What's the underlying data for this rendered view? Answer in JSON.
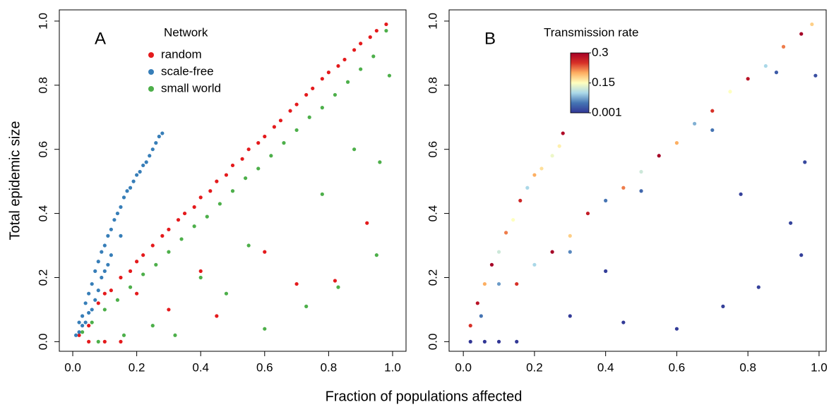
{
  "chart_data": [
    {
      "type": "scatter",
      "panel_label": "A",
      "xlabel": "Fraction of populations affected",
      "ylabel": "Total epidemic size",
      "legend_title": "Network",
      "xlim": [
        -0.042,
        1.042
      ],
      "ylim": [
        -0.03,
        1.035
      ],
      "xticks": [
        {
          "value": 0,
          "label": "0.0"
        },
        0.2,
        0.4,
        0.6,
        0.8,
        {
          "value": 1,
          "label": "1.0"
        }
      ],
      "yticks": [
        {
          "value": 0,
          "label": "0.0"
        },
        0.2,
        0.4,
        0.6,
        0.8,
        {
          "value": 1,
          "label": "1.0"
        }
      ],
      "series": [
        {
          "name": "random",
          "color": "#e41a1c",
          "x": [
            0.02,
            0.05,
            0.08,
            0.1,
            0.12,
            0.15,
            0.18,
            0.2,
            0.22,
            0.25,
            0.28,
            0.3,
            0.33,
            0.35,
            0.38,
            0.4,
            0.43,
            0.45,
            0.48,
            0.5,
            0.53,
            0.55,
            0.58,
            0.6,
            0.63,
            0.65,
            0.68,
            0.7,
            0.73,
            0.75,
            0.78,
            0.8,
            0.83,
            0.85,
            0.88,
            0.9,
            0.93,
            0.95,
            0.98,
            0.05,
            0.1,
            0.15,
            0.3,
            0.45,
            0.7,
            0.82,
            0.92,
            0.2,
            0.6,
            0.4
          ],
          "values": [
            0.02,
            0.05,
            0.12,
            0.15,
            0.16,
            0.2,
            0.22,
            0.25,
            0.27,
            0.3,
            0.33,
            0.35,
            0.38,
            0.4,
            0.42,
            0.45,
            0.47,
            0.5,
            0.52,
            0.55,
            0.57,
            0.6,
            0.62,
            0.64,
            0.67,
            0.69,
            0.72,
            0.74,
            0.77,
            0.79,
            0.82,
            0.84,
            0.86,
            0.88,
            0.91,
            0.93,
            0.95,
            0.97,
            0.99,
            0.0,
            0.0,
            0.0,
            0.1,
            0.08,
            0.18,
            0.19,
            0.37,
            0.15,
            0.28,
            0.22
          ]
        },
        {
          "name": "scale-free",
          "color": "#377eb8",
          "x": [
            0.01,
            0.02,
            0.02,
            0.03,
            0.04,
            0.04,
            0.05,
            0.06,
            0.06,
            0.07,
            0.08,
            0.08,
            0.09,
            0.1,
            0.1,
            0.11,
            0.12,
            0.12,
            0.13,
            0.14,
            0.15,
            0.15,
            0.16,
            0.17,
            0.18,
            0.19,
            0.2,
            0.21,
            0.22,
            0.23,
            0.24,
            0.25,
            0.26,
            0.27,
            0.28,
            0.03,
            0.05,
            0.07,
            0.09,
            0.11
          ],
          "values": [
            0.02,
            0.06,
            0.03,
            0.08,
            0.12,
            0.06,
            0.15,
            0.18,
            0.1,
            0.22,
            0.25,
            0.16,
            0.28,
            0.3,
            0.22,
            0.33,
            0.35,
            0.27,
            0.38,
            0.4,
            0.42,
            0.33,
            0.45,
            0.47,
            0.48,
            0.5,
            0.52,
            0.53,
            0.55,
            0.56,
            0.58,
            0.6,
            0.62,
            0.64,
            0.65,
            0.05,
            0.09,
            0.13,
            0.2,
            0.24
          ]
        },
        {
          "name": "small world",
          "color": "#4daf4a",
          "x": [
            0.03,
            0.06,
            0.1,
            0.14,
            0.18,
            0.22,
            0.26,
            0.3,
            0.34,
            0.38,
            0.42,
            0.46,
            0.5,
            0.54,
            0.58,
            0.62,
            0.66,
            0.7,
            0.74,
            0.78,
            0.82,
            0.86,
            0.9,
            0.94,
            0.98,
            0.08,
            0.16,
            0.32,
            0.48,
            0.6,
            0.73,
            0.78,
            0.83,
            0.88,
            0.95,
            0.96,
            0.99,
            0.25,
            0.4,
            0.55
          ],
          "values": [
            0.03,
            0.06,
            0.1,
            0.13,
            0.17,
            0.21,
            0.24,
            0.28,
            0.32,
            0.36,
            0.39,
            0.43,
            0.47,
            0.51,
            0.54,
            0.58,
            0.62,
            0.66,
            0.7,
            0.73,
            0.77,
            0.81,
            0.85,
            0.89,
            0.97,
            0.0,
            0.02,
            0.02,
            0.15,
            0.04,
            0.11,
            0.46,
            0.17,
            0.6,
            0.27,
            0.56,
            0.83,
            0.05,
            0.2,
            0.3
          ]
        }
      ]
    },
    {
      "type": "colorscatter",
      "panel_label": "B",
      "colorbar_title": "Transmission rate",
      "xlim": [
        -0.04,
        1.02
      ],
      "ylim": [
        -0.03,
        1.035
      ],
      "xticks": [
        {
          "value": 0,
          "label": "0.0"
        },
        0.2,
        0.4,
        0.6,
        0.8,
        {
          "value": 1,
          "label": "1.0"
        }
      ],
      "yticks": [
        {
          "value": 0,
          "label": "0.0"
        },
        0.2,
        0.4,
        0.6,
        0.8,
        {
          "value": 1,
          "label": "1.0"
        }
      ],
      "clim": [
        0.001,
        0.3
      ],
      "cticks": [
        0.001,
        0.15,
        0.3
      ],
      "colormap": [
        "#313695",
        "#4575b4",
        "#abd9e9",
        "#ffffbf",
        "#fdae61",
        "#d73027",
        "#a50026"
      ],
      "x": [
        0.02,
        0.04,
        0.06,
        0.08,
        0.1,
        0.12,
        0.14,
        0.16,
        0.18,
        0.2,
        0.22,
        0.25,
        0.27,
        0.28,
        0.05,
        0.1,
        0.15,
        0.2,
        0.25,
        0.3,
        0.35,
        0.4,
        0.45,
        0.5,
        0.55,
        0.6,
        0.65,
        0.7,
        0.75,
        0.8,
        0.85,
        0.9,
        0.95,
        0.98,
        0.3,
        0.5,
        0.7,
        0.88,
        0.02,
        0.06,
        0.1,
        0.15,
        0.3,
        0.45,
        0.6,
        0.73,
        0.83,
        0.92,
        0.95,
        0.96,
        0.99,
        0.78,
        0.4
      ],
      "values": [
        0.05,
        0.12,
        0.18,
        0.24,
        0.28,
        0.34,
        0.38,
        0.44,
        0.48,
        0.52,
        0.54,
        0.58,
        0.61,
        0.65,
        0.08,
        0.18,
        0.18,
        0.24,
        0.28,
        0.33,
        0.4,
        0.44,
        0.48,
        0.53,
        0.58,
        0.62,
        0.68,
        0.72,
        0.78,
        0.82,
        0.86,
        0.92,
        0.96,
        0.99,
        0.28,
        0.47,
        0.66,
        0.84,
        0.0,
        0.0,
        0.0,
        0.0,
        0.08,
        0.06,
        0.04,
        0.11,
        0.17,
        0.37,
        0.27,
        0.56,
        0.83,
        0.46,
        0.22
      ],
      "rate": [
        0.25,
        0.28,
        0.2,
        0.3,
        0.12,
        0.22,
        0.15,
        0.26,
        0.1,
        0.2,
        0.17,
        0.14,
        0.16,
        0.29,
        0.05,
        0.07,
        0.25,
        0.1,
        0.3,
        0.18,
        0.27,
        0.05,
        0.22,
        0.12,
        0.3,
        0.2,
        0.08,
        0.25,
        0.15,
        0.28,
        0.1,
        0.22,
        0.3,
        0.18,
        0.06,
        0.04,
        0.05,
        0.03,
        0.001,
        0.002,
        0.001,
        0.003,
        0.005,
        0.004,
        0.006,
        0.008,
        0.01,
        0.012,
        0.009,
        0.015,
        0.02,
        0.01,
        0.007
      ]
    }
  ]
}
